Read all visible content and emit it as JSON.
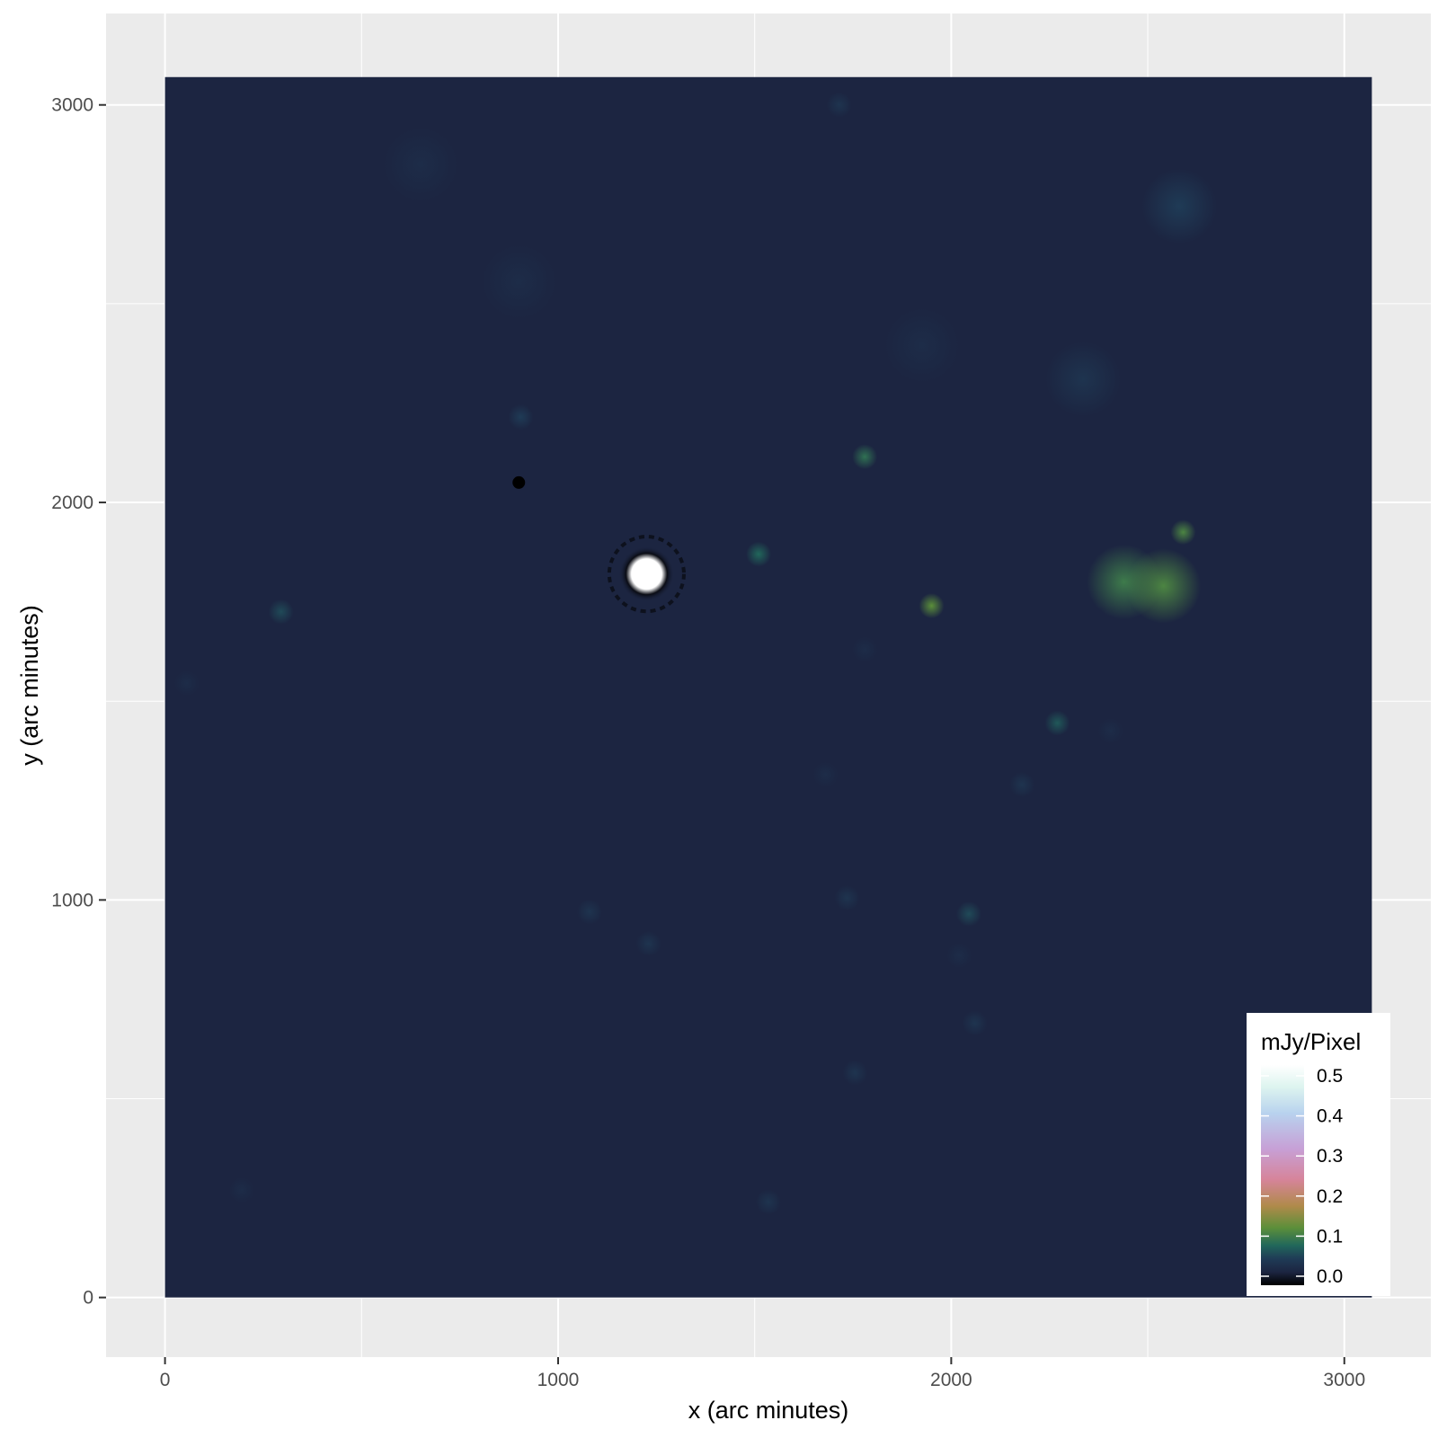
{
  "chart_data": {
    "type": "heatmap",
    "xlabel": "x (arc minutes)",
    "ylabel": "y (arc minutes)",
    "x_ticks": [
      0,
      1000,
      2000,
      3000
    ],
    "y_ticks": [
      0,
      1000,
      2000,
      3000
    ],
    "xlim": [
      -150,
      3220
    ],
    "ylim": [
      -150,
      3230
    ],
    "data_extent": {
      "x": [
        0,
        3070
      ],
      "y": [
        0,
        3070
      ]
    },
    "grid": true,
    "background_value": 0.03,
    "legend": {
      "title": "mJy/Pixel",
      "position": "bottom-right",
      "ticks": [
        0.0,
        0.1,
        0.2,
        0.3,
        0.4,
        0.5
      ],
      "tick_labels": [
        "0.0",
        "0.1",
        "0.2",
        "0.3",
        "0.4",
        "0.5"
      ],
      "range": [
        0,
        0.5
      ]
    },
    "colorscale": [
      {
        "v": 0.0,
        "color": "#000000"
      },
      {
        "v": 0.03,
        "color": "#1c2541"
      },
      {
        "v": 0.06,
        "color": "#1f3b56"
      },
      {
        "v": 0.09,
        "color": "#21675b"
      },
      {
        "v": 0.13,
        "color": "#5b8f3a"
      },
      {
        "v": 0.18,
        "color": "#b08a4a"
      },
      {
        "v": 0.24,
        "color": "#d6849a"
      },
      {
        "v": 0.31,
        "color": "#c7a0d6"
      },
      {
        "v": 0.39,
        "color": "#b8d2ee"
      },
      {
        "v": 0.45,
        "color": "#ddf4ef"
      },
      {
        "v": 0.5,
        "color": "#ffffff"
      }
    ],
    "sources": [
      {
        "x": 1225,
        "y": 1820,
        "value": 0.5,
        "kind": "bright"
      },
      {
        "x": 2590,
        "y": 1925,
        "value": 0.12,
        "kind": "point"
      },
      {
        "x": 1950,
        "y": 1740,
        "value": 0.13,
        "kind": "point"
      },
      {
        "x": 1780,
        "y": 2115,
        "value": 0.1,
        "kind": "point"
      },
      {
        "x": 1510,
        "y": 1870,
        "value": 0.09,
        "kind": "point"
      },
      {
        "x": 905,
        "y": 2215,
        "value": 0.06,
        "kind": "point"
      },
      {
        "x": 2270,
        "y": 1445,
        "value": 0.08,
        "kind": "point"
      },
      {
        "x": 2045,
        "y": 965,
        "value": 0.07,
        "kind": "point"
      },
      {
        "x": 295,
        "y": 1725,
        "value": 0.07,
        "kind": "point"
      },
      {
        "x": 2440,
        "y": 1800,
        "value": 0.11,
        "kind": "diffuse"
      },
      {
        "x": 2540,
        "y": 1790,
        "value": 0.12,
        "kind": "diffuse"
      },
      {
        "x": 2580,
        "y": 2745,
        "value": 0.06,
        "kind": "diffuse"
      },
      {
        "x": 2335,
        "y": 2310,
        "value": 0.05,
        "kind": "diffuse"
      },
      {
        "x": 1735,
        "y": 1005,
        "value": 0.05,
        "kind": "point"
      },
      {
        "x": 1230,
        "y": 890,
        "value": 0.05,
        "kind": "point"
      },
      {
        "x": 1080,
        "y": 970,
        "value": 0.05,
        "kind": "point"
      },
      {
        "x": 2060,
        "y": 690,
        "value": 0.05,
        "kind": "point"
      },
      {
        "x": 2180,
        "y": 1290,
        "value": 0.05,
        "kind": "point"
      },
      {
        "x": 1535,
        "y": 240,
        "value": 0.05,
        "kind": "point"
      },
      {
        "x": 1715,
        "y": 3000,
        "value": 0.05,
        "kind": "point"
      },
      {
        "x": 650,
        "y": 2850,
        "value": 0.04,
        "kind": "diffuse"
      },
      {
        "x": 900,
        "y": 2555,
        "value": 0.04,
        "kind": "diffuse"
      },
      {
        "x": 1755,
        "y": 565,
        "value": 0.05,
        "kind": "point"
      },
      {
        "x": 1680,
        "y": 1315,
        "value": 0.04,
        "kind": "point"
      },
      {
        "x": 55,
        "y": 1545,
        "value": 0.04,
        "kind": "point"
      },
      {
        "x": 2020,
        "y": 860,
        "value": 0.04,
        "kind": "point"
      },
      {
        "x": 195,
        "y": 270,
        "value": 0.04,
        "kind": "point"
      },
      {
        "x": 1925,
        "y": 2395,
        "value": 0.04,
        "kind": "diffuse"
      },
      {
        "x": 900,
        "y": 2050,
        "value": 0.0,
        "kind": "dark"
      },
      {
        "x": 1780,
        "y": 1630,
        "value": 0.04,
        "kind": "point"
      },
      {
        "x": 2405,
        "y": 1425,
        "value": 0.04,
        "kind": "point"
      }
    ]
  }
}
